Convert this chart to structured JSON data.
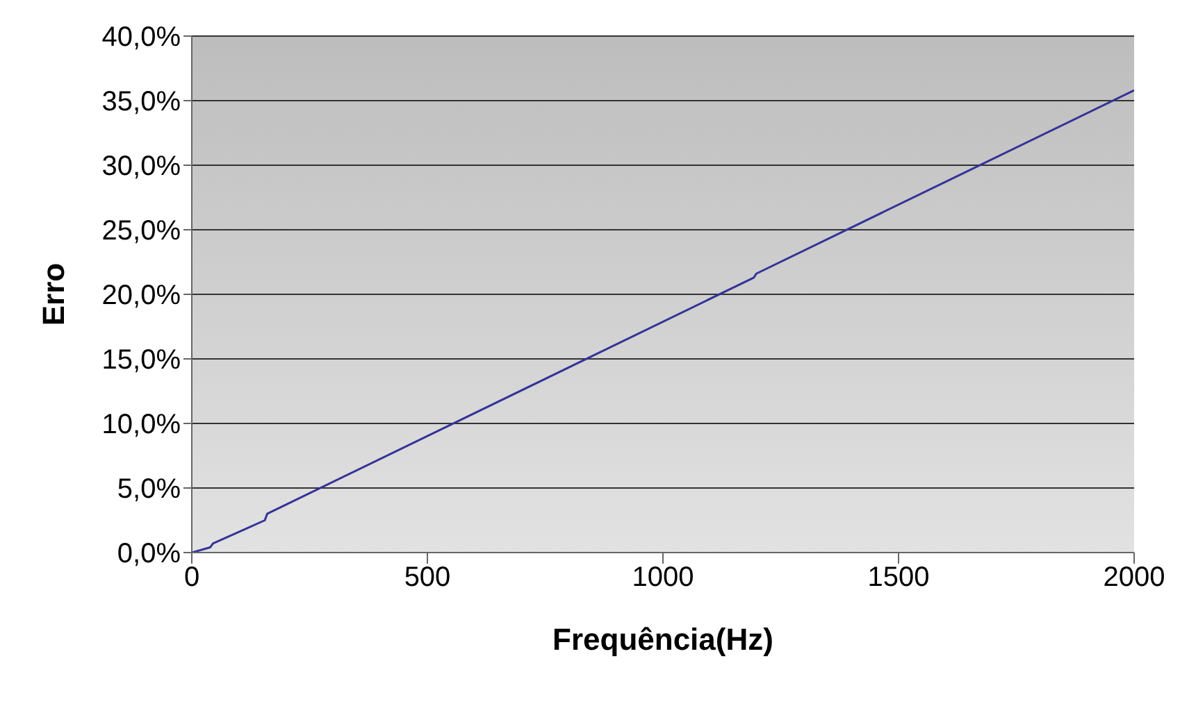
{
  "chart_data": {
    "type": "line",
    "xlabel": "Frequência(Hz)",
    "ylabel": "Erro",
    "x": [
      0,
      39,
      45,
      155,
      160,
      1193,
      1198,
      2000
    ],
    "series": [
      {
        "color": "#333399",
        "values": [
          0,
          0.4,
          0.7,
          2.5,
          3.0,
          21.3,
          21.6,
          35.8
        ]
      }
    ],
    "xlim": [
      0,
      2000
    ],
    "xticks": [
      0,
      500,
      1000,
      1500,
      2000
    ],
    "ylim": [
      0,
      40
    ],
    "yticks": [
      {
        "value": 0,
        "label": "0,0%"
      },
      {
        "value": 5,
        "label": "5,0%"
      },
      {
        "value": 10,
        "label": "10,0%"
      },
      {
        "value": 15,
        "label": "15,0%"
      },
      {
        "value": 20,
        "label": "20,0%"
      },
      {
        "value": 25,
        "label": "25,0%"
      },
      {
        "value": 30,
        "label": "30,0%"
      },
      {
        "value": 35,
        "label": "35,0%"
      },
      {
        "value": 40,
        "label": "40,0%"
      }
    ],
    "grid": "y",
    "legend": false,
    "marker": "none",
    "line_style": "solid"
  }
}
